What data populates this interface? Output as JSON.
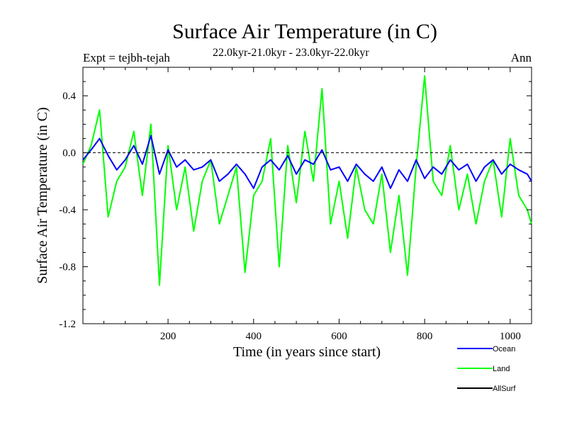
{
  "chart_data": {
    "type": "line",
    "title": "Surface Air Temperature (in C)",
    "subtitle": "22.0kyr-21.0kyr - 23.0kyr-22.0kyr",
    "expt_label": "Expt = tejbh-tejah",
    "season": "Ann",
    "xlabel": "Time (in years since start)",
    "ylabel": "Surface Air Temperature (in C)",
    "xlim": [
      1,
      1050
    ],
    "ylim": [
      -1.2,
      0.6
    ],
    "x_ticks": [
      200,
      400,
      600,
      800,
      1000
    ],
    "x_tick_labels": [
      "200",
      "400",
      "600",
      "800",
      "1000"
    ],
    "y_ticks": [
      -1.2,
      -0.8,
      -0.4,
      0.0,
      0.4
    ],
    "y_tick_labels": [
      "-1.2",
      "-0.8",
      "-0.4",
      "0.0",
      "0.4"
    ],
    "zero_line": 0.0,
    "series": [
      {
        "name": "Ocean",
        "color": "#0000ff",
        "x": [
          1,
          20,
          40,
          60,
          80,
          100,
          120,
          140,
          160,
          180,
          200,
          220,
          240,
          260,
          280,
          300,
          320,
          340,
          360,
          380,
          400,
          420,
          440,
          460,
          480,
          500,
          520,
          540,
          560,
          580,
          600,
          620,
          640,
          660,
          680,
          700,
          720,
          740,
          760,
          780,
          800,
          820,
          840,
          860,
          880,
          900,
          920,
          940,
          960,
          980,
          1000,
          1020,
          1040,
          1050
        ],
        "values": [
          -0.05,
          0.02,
          0.1,
          -0.02,
          -0.12,
          -0.05,
          0.05,
          -0.08,
          0.12,
          -0.15,
          0.02,
          -0.1,
          -0.05,
          -0.12,
          -0.1,
          -0.05,
          -0.2,
          -0.15,
          -0.08,
          -0.15,
          -0.25,
          -0.1,
          -0.05,
          -0.12,
          -0.02,
          -0.15,
          -0.05,
          -0.08,
          0.02,
          -0.12,
          -0.1,
          -0.2,
          -0.08,
          -0.15,
          -0.2,
          -0.1,
          -0.25,
          -0.12,
          -0.2,
          -0.05,
          -0.18,
          -0.1,
          -0.15,
          -0.05,
          -0.12,
          -0.08,
          -0.2,
          -0.1,
          -0.05,
          -0.15,
          -0.08,
          -0.12,
          -0.15,
          -0.2
        ]
      },
      {
        "name": "Land",
        "color": "#00ff00",
        "x": [
          1,
          20,
          40,
          60,
          80,
          100,
          120,
          140,
          160,
          180,
          200,
          220,
          240,
          260,
          280,
          300,
          320,
          340,
          360,
          380,
          400,
          420,
          440,
          460,
          480,
          500,
          520,
          540,
          560,
          580,
          600,
          620,
          640,
          660,
          680,
          700,
          720,
          740,
          760,
          780,
          800,
          820,
          840,
          860,
          880,
          900,
          920,
          940,
          960,
          980,
          1000,
          1020,
          1040,
          1050
        ],
        "values": [
          -0.08,
          0.05,
          0.3,
          -0.45,
          -0.2,
          -0.1,
          0.15,
          -0.3,
          0.2,
          -0.93,
          0.05,
          -0.4,
          -0.1,
          -0.55,
          -0.2,
          -0.05,
          -0.5,
          -0.3,
          -0.1,
          -0.84,
          -0.3,
          -0.2,
          0.1,
          -0.8,
          0.05,
          -0.35,
          0.15,
          -0.2,
          0.45,
          -0.5,
          -0.2,
          -0.6,
          -0.1,
          -0.4,
          -0.5,
          -0.15,
          -0.7,
          -0.3,
          -0.86,
          -0.1,
          0.54,
          -0.2,
          -0.3,
          0.05,
          -0.4,
          -0.15,
          -0.5,
          -0.2,
          -0.05,
          -0.45,
          0.1,
          -0.3,
          -0.4,
          -0.5
        ]
      },
      {
        "name": "AllSurf",
        "color": "#000000",
        "x": [],
        "values": []
      }
    ]
  }
}
